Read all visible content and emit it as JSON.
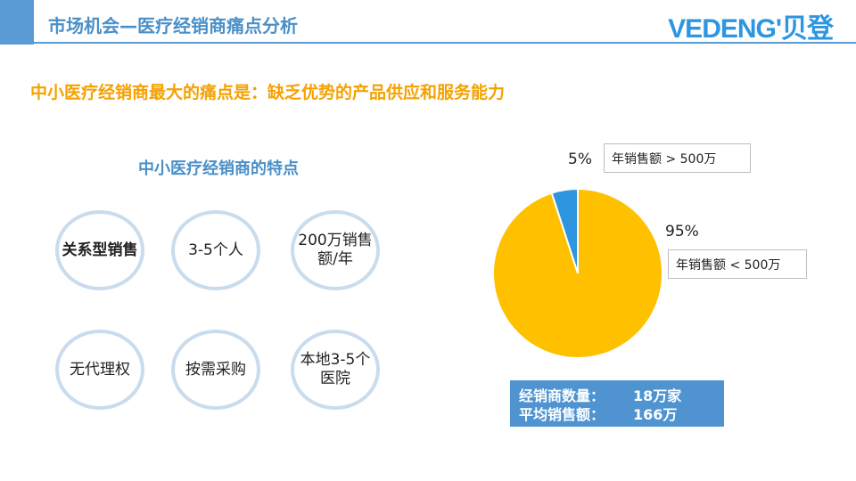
{
  "header": {
    "title": "市场机会—医疗经销商痛点分析",
    "logo": "VEDENG'贝登"
  },
  "headline": "中小医疗经销商最大的痛点是：缺乏优势的产品供应和服务能力",
  "features": {
    "title": "中小医疗经销商的特点",
    "items": [
      {
        "label": "关系型销售",
        "bold": true
      },
      {
        "label": "3-5个人",
        "bold": false
      },
      {
        "label": "200万销售额/年",
        "bold": false
      },
      {
        "label": "无代理权",
        "bold": false
      },
      {
        "label": "按需采购",
        "bold": false
      },
      {
        "label": "本地3-5个医院",
        "bold": false
      }
    ]
  },
  "chart_data": {
    "type": "pie",
    "slices": [
      {
        "label": "年销售额 > 500万",
        "value": 5,
        "value_label": "5%",
        "color": "#2e96e0"
      },
      {
        "label": "年销售额 < 500万",
        "value": 95,
        "value_label": "95%",
        "color": "#ffc000"
      }
    ]
  },
  "stats": {
    "dealer_count_label": "经销商数量：",
    "dealer_count_value": "18万家",
    "avg_sales_label": "平均销售额：",
    "avg_sales_value": "166万"
  },
  "colors": {
    "accent": "#5b9bd5",
    "headline": "#f5a100",
    "pie_major": "#ffc000",
    "pie_minor": "#2e96e0"
  }
}
